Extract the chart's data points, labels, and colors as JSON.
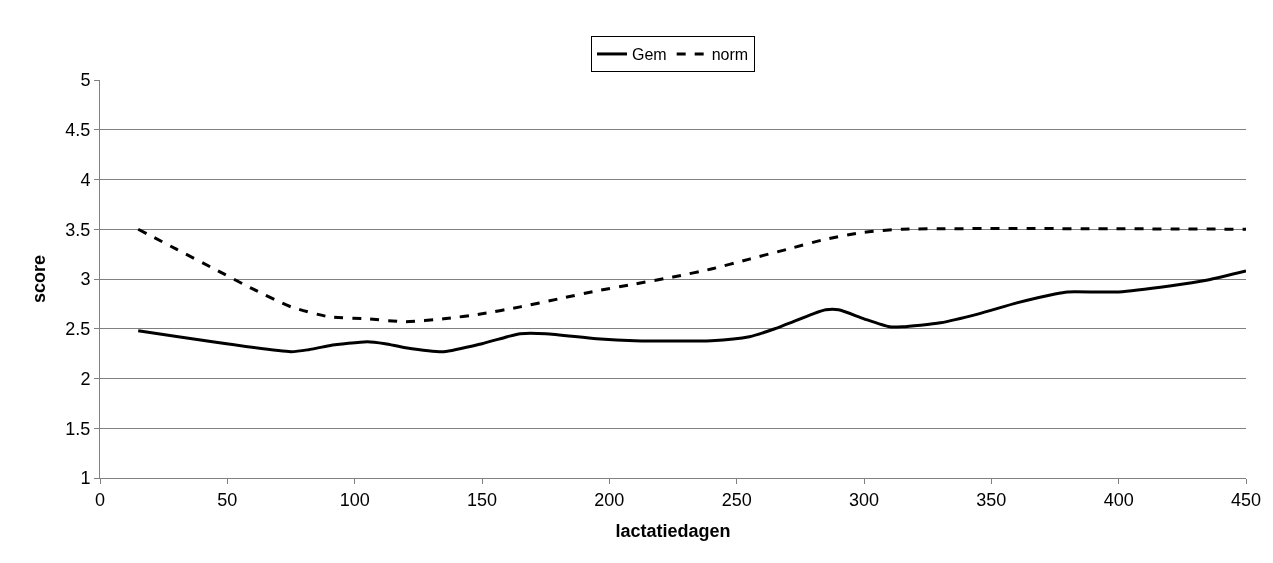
{
  "chart_data": {
    "type": "line",
    "xlabel": "lactatiedagen",
    "ylabel": "score",
    "xlim": [
      0,
      450
    ],
    "xticks": [
      0,
      50,
      100,
      150,
      200,
      250,
      300,
      350,
      400,
      450
    ],
    "ylim": [
      1,
      5
    ],
    "yticks": [
      1,
      1.5,
      2,
      2.5,
      3,
      3.5,
      4,
      4.5,
      5
    ],
    "grid": "y",
    "legend": "top",
    "marker": "none",
    "series": [
      {
        "name": "Gem",
        "color": "#000000",
        "line_style": "solid",
        "x": [
          15,
          75,
          82,
          90,
          105,
          112,
          120,
          135,
          150,
          160,
          165,
          175,
          195,
          210,
          240,
          255,
          265,
          280,
          285,
          290,
          300,
          310,
          315,
          330,
          345,
          360,
          375,
          380,
          400,
          420,
          435,
          450
        ],
        "values": [
          2.48,
          2.27,
          2.29,
          2.33,
          2.37,
          2.35,
          2.31,
          2.27,
          2.35,
          2.42,
          2.45,
          2.45,
          2.4,
          2.38,
          2.38,
          2.42,
          2.5,
          2.65,
          2.69,
          2.69,
          2.6,
          2.52,
          2.52,
          2.56,
          2.65,
          2.76,
          2.85,
          2.87,
          2.87,
          2.93,
          2.99,
          3.08
        ]
      },
      {
        "name": "norm",
        "color": "#000000",
        "line_style": "dashed",
        "x": [
          15,
          30,
          45,
          60,
          75,
          90,
          105,
          120,
          135,
          150,
          165,
          180,
          195,
          210,
          225,
          240,
          255,
          270,
          285,
          300,
          315,
          450
        ],
        "values": [
          3.5,
          3.3,
          3.1,
          2.9,
          2.72,
          2.62,
          2.6,
          2.57,
          2.6,
          2.65,
          2.72,
          2.8,
          2.88,
          2.95,
          3.02,
          3.1,
          3.2,
          3.3,
          3.4,
          3.47,
          3.5,
          3.5
        ]
      }
    ]
  }
}
